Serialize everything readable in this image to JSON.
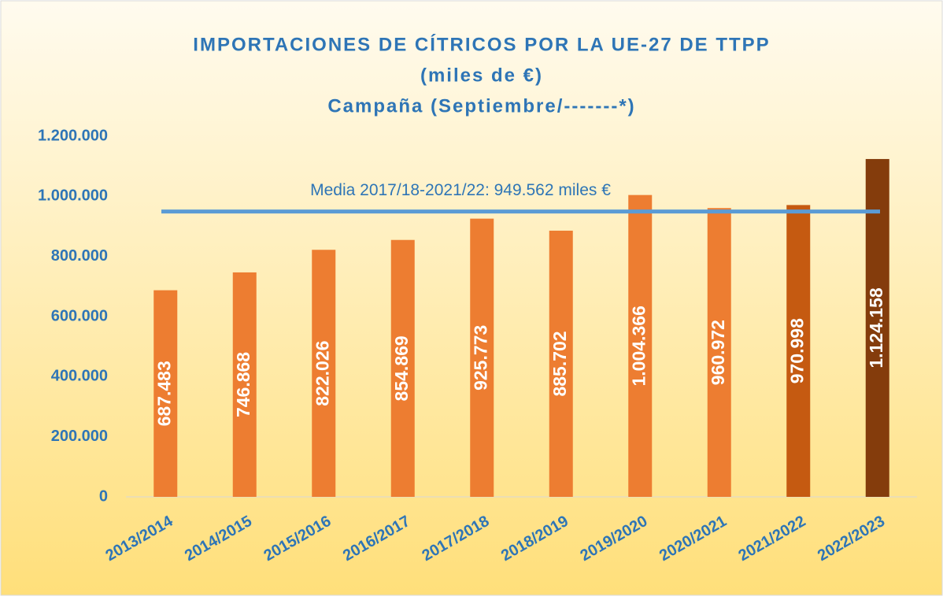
{
  "chart_data": {
    "type": "bar",
    "title": "IMPORTACIONES DE CÍTRICOS POR LA UE-27 DE TTPP",
    "subtitle": [
      "(miles de €)",
      "Campaña (Septiembre/-------*)"
    ],
    "categories": [
      "2013/2014",
      "2014/2015",
      "2015/2016",
      "2016/2017",
      "2017/2018",
      "2018/2019",
      "2019/2020",
      "2020/2021",
      "2021/2022",
      "2022/2023"
    ],
    "values": [
      687483,
      746868,
      822026,
      854869,
      925773,
      885702,
      1004366,
      960972,
      970998,
      1124158
    ],
    "value_labels": [
      "687.483",
      "746.868",
      "822.026",
      "854.869",
      "925.773",
      "885.702",
      "1.004.366",
      "960.972",
      "970.998",
      "1.124.158"
    ],
    "colors": [
      "#ED7D31",
      "#ED7D31",
      "#ED7D31",
      "#ED7D31",
      "#ED7D31",
      "#ED7D31",
      "#ED7D31",
      "#ED7D31",
      "#C55A11",
      "#843C0C"
    ],
    "ylim": [
      0,
      1200000
    ],
    "yticks": [
      0,
      {
        "value": 200000,
        "label": "200.000"
      },
      {
        "value": 400000,
        "label": "400.000"
      },
      {
        "value": 600000,
        "label": "600.000"
      },
      {
        "value": 800000,
        "label": "800.000"
      },
      {
        "value": 1000000,
        "label": "1.000.000"
      },
      {
        "value": 1200000,
        "label": "1.200.000"
      }
    ],
    "mean_line": {
      "value": 949562,
      "label": "Media 2017/18-2021/22: 949.562 miles €",
      "color": "#5B9BD5"
    }
  }
}
